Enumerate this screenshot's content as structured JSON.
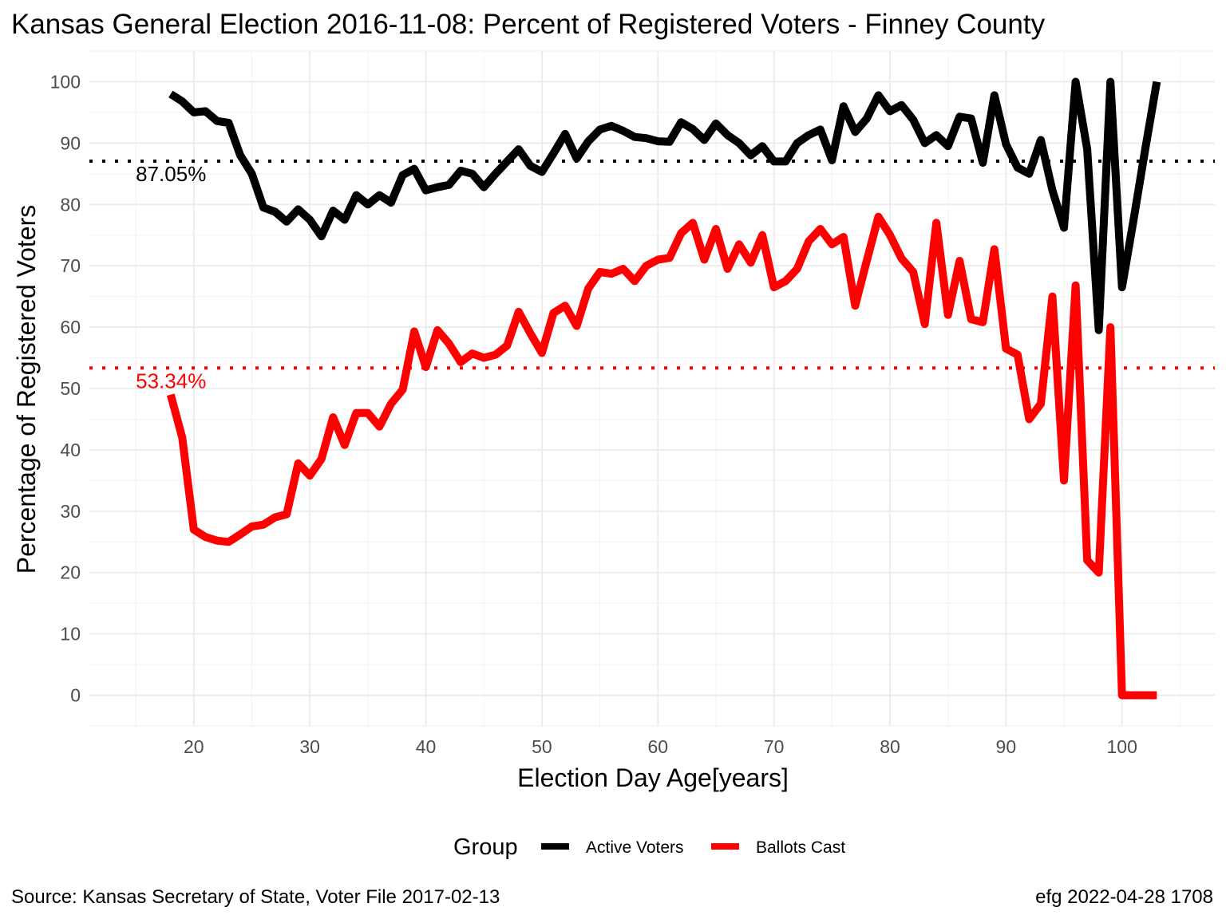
{
  "chart_data": {
    "type": "line",
    "title": "Kansas General Election 2016-11-08:  Percent of Registered Voters - Finney County",
    "xlabel": "Election Day Age[years]",
    "ylabel": "Percentage of Registered Voters",
    "xlim": [
      11,
      108
    ],
    "ylim": [
      -5,
      105
    ],
    "x_ticks": [
      20,
      30,
      40,
      50,
      60,
      70,
      80,
      90,
      100
    ],
    "y_ticks": [
      0,
      10,
      20,
      30,
      40,
      50,
      60,
      70,
      80,
      90,
      100
    ],
    "grid": true,
    "legend": {
      "title": "Group",
      "position": "bottom"
    },
    "x": [
      18,
      19,
      20,
      21,
      22,
      23,
      24,
      25,
      26,
      27,
      28,
      29,
      30,
      31,
      32,
      33,
      34,
      35,
      36,
      37,
      38,
      39,
      40,
      41,
      42,
      43,
      44,
      45,
      46,
      47,
      48,
      49,
      50,
      51,
      52,
      53,
      54,
      55,
      56,
      57,
      58,
      59,
      60,
      61,
      62,
      63,
      64,
      65,
      66,
      67,
      68,
      69,
      70,
      71,
      72,
      73,
      74,
      75,
      76,
      77,
      78,
      79,
      80,
      81,
      82,
      83,
      84,
      85,
      86,
      87,
      88,
      89,
      90,
      91,
      92,
      93,
      94,
      95,
      96,
      97,
      98,
      99,
      100,
      101,
      102,
      103
    ],
    "series": [
      {
        "name": "Active Voters",
        "color": "#000000",
        "values": [
          98,
          96.8,
          95,
          95.2,
          93.6,
          93.3,
          88,
          85,
          79.5,
          78.8,
          77.2,
          79.2,
          77.5,
          74.8,
          79,
          77.5,
          81.5,
          80,
          81.5,
          80.3,
          84.8,
          85.8,
          82.3,
          82.8,
          83.2,
          85.5,
          85,
          82.8,
          85,
          87,
          89,
          86.3,
          85.3,
          88.3,
          91.5,
          87.5,
          90.3,
          92.2,
          92.8,
          92,
          91,
          90.8,
          90.3,
          90.2,
          93.4,
          92.3,
          90.5,
          93.2,
          91.3,
          90,
          88,
          89.5,
          87,
          87,
          90,
          91.3,
          92.2,
          87.2,
          96,
          91.8,
          94,
          97.8,
          95.2,
          96.2,
          93.8,
          90,
          91.3,
          89.5,
          94.3,
          94,
          86.8,
          97.8,
          89.8,
          86,
          85,
          90.5,
          82.3,
          76.2,
          100,
          89,
          59.5,
          100,
          66.5,
          77.5,
          89,
          100
        ]
      },
      {
        "name": "Ballots Cast",
        "color": "#ff0000",
        "values": [
          49,
          42,
          27,
          25.8,
          25.2,
          25,
          26.2,
          27.5,
          27.8,
          29,
          29.5,
          37.8,
          35.8,
          38.5,
          45.3,
          40.8,
          46,
          46,
          43.8,
          47.5,
          49.8,
          59.3,
          53.5,
          59.5,
          57.3,
          54.3,
          55.7,
          55,
          55.5,
          57,
          62.5,
          59,
          55.8,
          62.3,
          63.5,
          60.2,
          66.3,
          69,
          68.7,
          69.5,
          67.5,
          70,
          71,
          71.3,
          75.3,
          77,
          71,
          76,
          69.5,
          73.5,
          70.5,
          75,
          66.5,
          67.5,
          69.5,
          74,
          76,
          73.5,
          74.7,
          63.5,
          70.8,
          78,
          75,
          71.2,
          69,
          60.5,
          77,
          62,
          70.8,
          61.3,
          60.8,
          72.7,
          56.5,
          55.5,
          45,
          47.5,
          65,
          35,
          66.8,
          22,
          20,
          60,
          0,
          0,
          0,
          0
        ]
      }
    ],
    "reference_lines": [
      {
        "series": "Active Voters",
        "value": 87.05,
        "label": "87.05%",
        "color": "#000000"
      },
      {
        "series": "Ballots Cast",
        "value": 53.34,
        "label": "53.34%",
        "color": "#ff0000"
      }
    ]
  },
  "caption_left": "Source:  Kansas Secretary of State, Voter File  2017-02-13",
  "caption_right": "efg 2022-04-28 1708"
}
